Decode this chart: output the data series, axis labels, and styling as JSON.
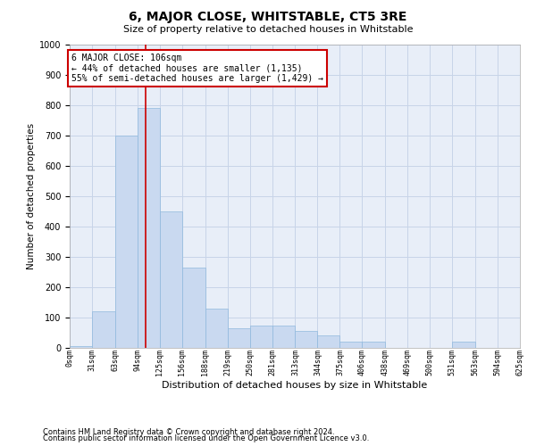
{
  "title": "6, MAJOR CLOSE, WHITSTABLE, CT5 3RE",
  "subtitle": "Size of property relative to detached houses in Whitstable",
  "xlabel": "Distribution of detached houses by size in Whitstable",
  "ylabel": "Number of detached properties",
  "footnote1": "Contains HM Land Registry data © Crown copyright and database right 2024.",
  "footnote2": "Contains public sector information licensed under the Open Government Licence v3.0.",
  "annotation_title": "6 MAJOR CLOSE: 106sqm",
  "annotation_line2": "← 44% of detached houses are smaller (1,135)",
  "annotation_line3": "55% of semi-detached houses are larger (1,429) →",
  "bar_color": "#c9d9f0",
  "bar_edge_color": "#8fb8dd",
  "grid_color": "#c8d4e8",
  "background_color": "#e8eef8",
  "vline_color": "#cc0000",
  "vline_x": 106,
  "bin_edges": [
    0,
    31,
    63,
    94,
    125,
    156,
    188,
    219,
    250,
    281,
    313,
    344,
    375,
    406,
    438,
    469,
    500,
    531,
    563,
    594,
    625
  ],
  "bin_labels": [
    "0sqm",
    "31sqm",
    "63sqm",
    "94sqm",
    "125sqm",
    "156sqm",
    "188sqm",
    "219sqm",
    "250sqm",
    "281sqm",
    "313sqm",
    "344sqm",
    "375sqm",
    "406sqm",
    "438sqm",
    "469sqm",
    "500sqm",
    "531sqm",
    "563sqm",
    "594sqm",
    "625sqm"
  ],
  "bar_heights": [
    5,
    120,
    700,
    790,
    450,
    265,
    130,
    65,
    75,
    75,
    55,
    40,
    20,
    20,
    0,
    0,
    0,
    20,
    0,
    0
  ],
  "ylim": [
    0,
    1000
  ],
  "yticks": [
    0,
    100,
    200,
    300,
    400,
    500,
    600,
    700,
    800,
    900,
    1000
  ]
}
